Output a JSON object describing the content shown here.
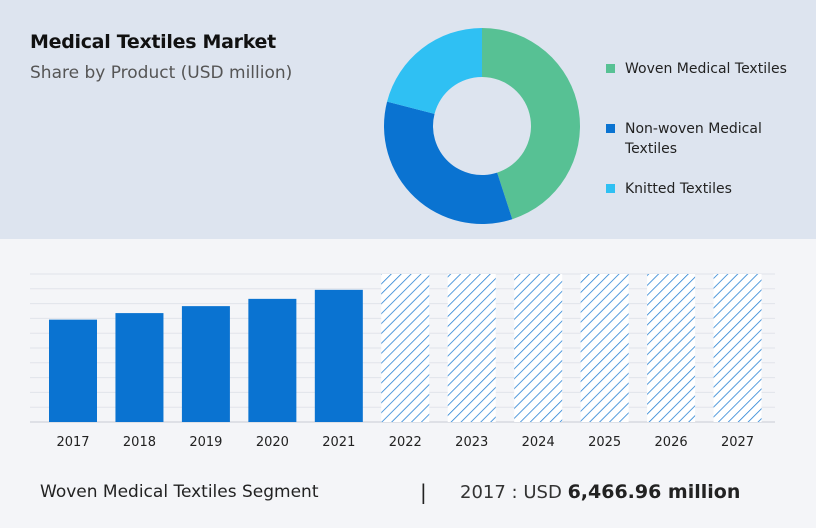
{
  "header": {
    "title": "Medical Textiles Market",
    "subtitle": "Share by Product (USD million)"
  },
  "legend": [
    {
      "label": "Woven Medical Textiles",
      "color": "#57c194"
    },
    {
      "label": "Non-woven Medical Textiles",
      "color": "#0a73d1"
    },
    {
      "label": "Knitted Textiles",
      "color": "#2fc0f3"
    }
  ],
  "footer": {
    "segment": "Woven Medical Textiles Segment",
    "divider": "|",
    "year": "2017",
    "sep": ":",
    "currency": "USD",
    "value": "6,466.96 million"
  },
  "chart_data": [
    {
      "type": "pie",
      "donut": true,
      "categories": [
        "Woven Medical Textiles",
        "Non-woven Medical Textiles",
        "Knitted Textiles"
      ],
      "values": [
        45,
        34,
        21
      ],
      "colors": [
        "#57c194",
        "#0a73d1",
        "#2fc0f3"
      ]
    },
    {
      "type": "bar",
      "categories": [
        "2017",
        "2018",
        "2019",
        "2020",
        "2021",
        "2022",
        "2023",
        "2024",
        "2025",
        "2026",
        "2027"
      ],
      "values": [
        6466.96,
        6880,
        7320,
        7780,
        8350,
        9350,
        9350,
        9350,
        9350,
        9350,
        9350
      ],
      "forecast": [
        false,
        false,
        false,
        false,
        false,
        true,
        true,
        true,
        true,
        true,
        true
      ],
      "ylim": [
        0,
        9350
      ],
      "grid": true,
      "color": "#0a73d1",
      "forecast_color": "#2a83d4"
    }
  ]
}
